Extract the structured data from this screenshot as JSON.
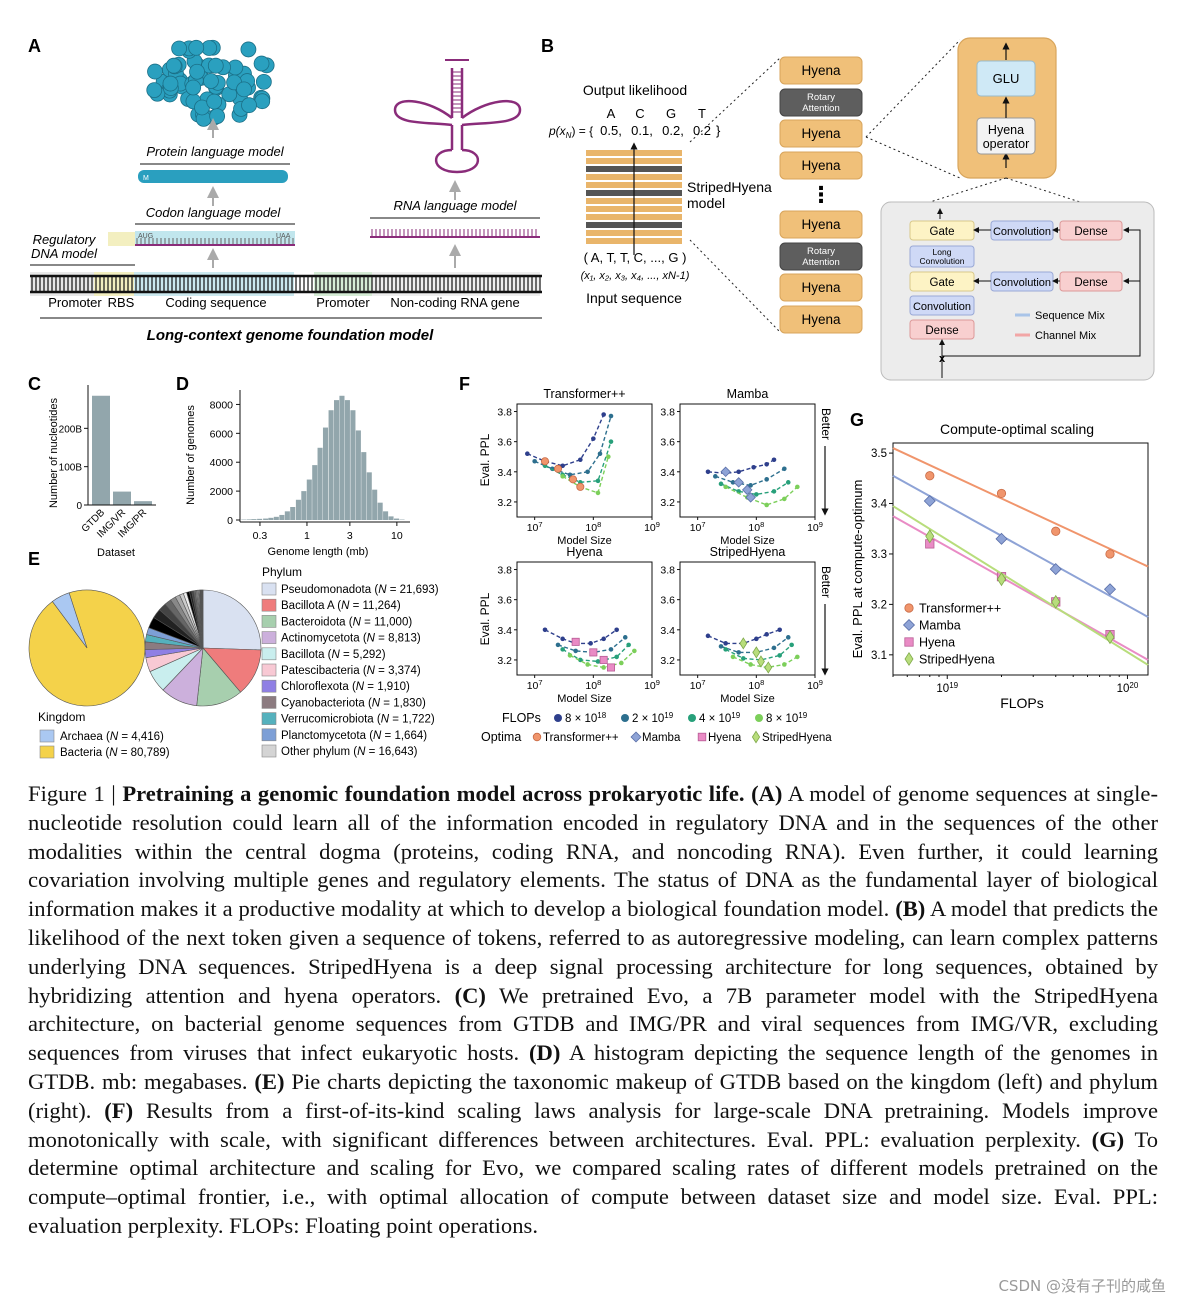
{
  "panel_letters": [
    "A",
    "B",
    "C",
    "D",
    "E",
    "F",
    "G"
  ],
  "panelA": {
    "protein_model": "Protein language model",
    "codon_model": "Codon language model",
    "rna_model": "RNA language model",
    "regulatory_model_l1": "Regulatory",
    "regulatory_model_l2": "DNA model",
    "start_codon": "AUG",
    "stop_codon": "UAA",
    "m_label": "M",
    "segments": [
      "Promoter",
      "RBS",
      "Coding sequence",
      "Promoter",
      "Non-coding RNA gene"
    ],
    "foundation_model": "Long-context genome foundation model"
  },
  "panelB": {
    "output_likelihood": "Output likelihood",
    "bases": [
      "A",
      "C",
      "G",
      "T"
    ],
    "prob_prefix": "p(x",
    "prob_sub": "N",
    "prob_suffix": ") = {",
    "probs": [
      "0.5,",
      "0.1,",
      "0.2,",
      "0.2"
    ],
    "prob_close": "}",
    "model_name_l1": "StripedHyena",
    "model_name_l2": "model",
    "input_tokens": "( A, T, T, C, ..., G )",
    "input_vars": "(x₁, x₂, x₃, x₄, ..., xN-1)",
    "input_sequence": "Input sequence",
    "stack": [
      "Hyena",
      "Rotary Attention",
      "Hyena",
      "Hyena",
      "Hyena",
      "Rotary Attention",
      "Hyena",
      "Hyena"
    ],
    "ellipsis": "⋮",
    "glu": "GLU",
    "hyena_op_l1": "Hyena",
    "hyena_op_l2": "operator",
    "gate": "Gate",
    "long_conv_l1": "Long",
    "long_conv_l2": "Convolution",
    "convolution": "Convolution",
    "dense": "Dense",
    "x_symbol": "x",
    "legend_seq": "Sequence Mix",
    "legend_chan": "Channel Mix"
  },
  "panelC": {
    "ylabel": "Number of nucleotides",
    "xlabel": "Dataset",
    "yticks": [
      "0",
      "100B",
      "200B"
    ],
    "categories": [
      "GTDB",
      "IMG/VR",
      "IMG/PR"
    ]
  },
  "panelD": {
    "ylabel": "Number of genomes",
    "xlabel": "Genome length (mb)",
    "yticks": [
      "0",
      "2000",
      "4000",
      "6000",
      "8000"
    ],
    "xticks": [
      "0.3",
      "1",
      "3",
      "10"
    ]
  },
  "panelE": {
    "kingdom_title": "Kingdom",
    "kingdoms": [
      {
        "pre": "Archaea (",
        "n": "N",
        "post": " = 4,416)",
        "color": "#aac8f2"
      },
      {
        "pre": "Bacteria (",
        "n": "N",
        "post": " = 80,789)",
        "color": "#f4d24a"
      }
    ],
    "phylum_title": "Phylum",
    "phyla": [
      {
        "pre": "Pseudomonadota (",
        "n": "N",
        "post": " = 21,693)",
        "color": "#d9e1f1"
      },
      {
        "pre": "Bacillota A (",
        "n": "N",
        "post": " = 11,264)",
        "color": "#ef7c7c"
      },
      {
        "pre": "Bacteroidota (",
        "n": "N",
        "post": " = 11,000)",
        "color": "#a7cfae"
      },
      {
        "pre": "Actinomycetota (",
        "n": "N",
        "post": " = 8,813)",
        "color": "#ccb0dc"
      },
      {
        "pre": "Bacillota (",
        "n": "N",
        "post": " = 5,292)",
        "color": "#c9eeee"
      },
      {
        "pre": "Patescibacteria (",
        "n": "N",
        "post": " = 3,374)",
        "color": "#f8c9d4"
      },
      {
        "pre": "Chloroflexota (",
        "n": "N",
        "post": " = 1,910)",
        "color": "#8f7fe4"
      },
      {
        "pre": "Cyanobacteriota (",
        "n": "N",
        "post": " = 1,830)",
        "color": "#8c7b80"
      },
      {
        "pre": "Verrucomicrobiota (",
        "n": "N",
        "post": " = 1,722)",
        "color": "#55b1bd"
      },
      {
        "pre": "Planctomycetota (",
        "n": "N",
        "post": " = 1,664)",
        "color": "#7d9fd6"
      },
      {
        "pre": "Other phylum (",
        "n": "N",
        "post": " = 16,643)",
        "color": "#d4d4d4"
      }
    ]
  },
  "panelF": {
    "titles": [
      "Transformer++",
      "Mamba",
      "Hyena",
      "StripedHyena"
    ],
    "ylabel": "Eval. PPL",
    "xlabel": "Model Size",
    "better": "Better",
    "yticks_top": [
      "3.2",
      "3.4",
      "3.6",
      "3.8"
    ],
    "yticks_bottom": [
      "3.2",
      "3.4",
      "3.6",
      "3.8"
    ],
    "xtick_base": "10",
    "xtick_exps": [
      "7",
      "8",
      "9"
    ],
    "flops_label": "FLOPs",
    "flops": [
      {
        "label": "8 × 10",
        "exp": "18",
        "color": "#2e3f8c"
      },
      {
        "label": "2 × 10",
        "exp": "19",
        "color": "#2d6f8e"
      },
      {
        "label": "4 × 10",
        "exp": "19",
        "color": "#27a07a"
      },
      {
        "label": "8 × 10",
        "exp": "19",
        "color": "#7ccf5a"
      }
    ],
    "optima_label": "Optima",
    "optima": [
      "Transformer++",
      "Mamba",
      "Hyena",
      "StripedHyena"
    ]
  },
  "panelG": {
    "title": "Compute-optimal scaling",
    "ylabel": "Eval. PPL at compute-optimum",
    "xlabel": "FLOPs",
    "yticks": [
      "3.1",
      "3.2",
      "3.3",
      "3.4",
      "3.5"
    ],
    "xtick_base": "10",
    "xtick_exps": [
      "19",
      "20"
    ],
    "series": [
      "Transformer++",
      "Mamba",
      "Hyena",
      "StripedHyena"
    ],
    "colors": {
      "Transformer++": "#f0956c",
      "Mamba": "#8ea3d6",
      "Hyena": "#e98bc5",
      "StripedHyena": "#b8dd7c"
    }
  },
  "chart_data": [
    {
      "type": "bar",
      "panel": "C",
      "categories": [
        "GTDB",
        "IMG/VR",
        "IMG/PR"
      ],
      "values": [
        285,
        35,
        10
      ],
      "unit": "B",
      "ylabel": "Number of nucleotides",
      "xlabel": "Dataset",
      "ylim": [
        0,
        300
      ]
    },
    {
      "type": "bar",
      "panel": "D",
      "xlabel": "Genome length (mb)",
      "ylabel": "Number of genomes",
      "xscale": "log",
      "x": [
        0.2,
        0.23,
        0.26,
        0.3,
        0.35,
        0.4,
        0.46,
        0.53,
        0.61,
        0.7,
        0.81,
        0.93,
        1.07,
        1.23,
        1.41,
        1.62,
        1.87,
        2.15,
        2.47,
        2.84,
        3.27,
        3.76,
        4.32,
        4.97,
        5.71,
        6.57,
        7.55,
        8.68,
        10.0,
        11.5
      ],
      "values": [
        30,
        40,
        60,
        80,
        100,
        150,
        220,
        350,
        600,
        900,
        1400,
        2000,
        2800,
        3800,
        5000,
        6400,
        7600,
        8300,
        8600,
        8300,
        7600,
        6200,
        4700,
        3300,
        2100,
        1200,
        600,
        250,
        100,
        30
      ],
      "ylim": [
        0,
        9000
      ]
    },
    {
      "type": "pie",
      "panel": "E-kingdom",
      "labels": [
        "Archaea",
        "Bacteria"
      ],
      "values": [
        4416,
        80789
      ]
    },
    {
      "type": "pie",
      "panel": "E-phylum",
      "labels": [
        "Pseudomonadota",
        "Bacillota A",
        "Bacteroidota",
        "Actinomycetota",
        "Bacillota",
        "Patescibacteria",
        "Chloroflexota",
        "Cyanobacteriota",
        "Verrucomicrobiota",
        "Planctomycetota",
        "Other phylum"
      ],
      "values": [
        21693,
        11264,
        11000,
        8813,
        5292,
        3374,
        1910,
        1830,
        1722,
        1664,
        16643
      ]
    },
    {
      "type": "scatter",
      "panel": "F",
      "xscale": "log",
      "xlim": [
        5000000.0,
        1000000000.0
      ],
      "ylim": [
        3.1,
        3.85
      ],
      "xlabel": "Model Size",
      "ylabel": "Eval. PPL",
      "subplots": [
        {
          "title": "Transformer++",
          "series": [
            {
              "flops": "8e18",
              "x": [
                7500000.0,
                15000000.0,
                30000000.0,
                60000000.0,
                100000000.0,
                150000000.0
              ],
              "y": [
                3.52,
                3.47,
                3.44,
                3.48,
                3.62,
                3.78
              ]
            },
            {
              "flops": "2e19",
              "x": [
                10000000.0,
                20000000.0,
                40000000.0,
                80000000.0,
                130000000.0,
                200000000.0
              ],
              "y": [
                3.47,
                3.42,
                3.38,
                3.4,
                3.52,
                3.77
              ]
            },
            {
              "flops": "4e19",
              "x": [
                15000000.0,
                30000000.0,
                60000000.0,
                120000000.0,
                200000000.0
              ],
              "y": [
                3.44,
                3.38,
                3.33,
                3.34,
                3.6
              ]
            },
            {
              "flops": "8e19",
              "x": [
                30000000.0,
                60000000.0,
                120000000.0,
                180000000.0
              ],
              "y": [
                3.37,
                3.3,
                3.26,
                3.5
              ]
            }
          ],
          "optima": {
            "x": [
              15000000.0,
              25000000.0,
              45000000.0,
              60000000.0
            ],
            "y": [
              3.47,
              3.42,
              3.35,
              3.3
            ]
          }
        },
        {
          "title": "Mamba",
          "series": [
            {
              "flops": "8e18",
              "x": [
                15000000.0,
                30000000.0,
                50000000.0,
                90000000.0,
                150000000.0,
                200000000.0
              ],
              "y": [
                3.4,
                3.39,
                3.4,
                3.43,
                3.45,
                3.48
              ]
            },
            {
              "flops": "2e19",
              "x": [
                20000000.0,
                40000000.0,
                80000000.0,
                150000000.0,
                300000000.0
              ],
              "y": [
                3.37,
                3.33,
                3.31,
                3.35,
                3.42
              ]
            },
            {
              "flops": "4e19",
              "x": [
                25000000.0,
                50000000.0,
                100000000.0,
                200000000.0,
                350000000.0
              ],
              "y": [
                3.32,
                3.27,
                3.25,
                3.27,
                3.33
              ]
            },
            {
              "flops": "8e19",
              "x": [
                30000000.0,
                70000000.0,
                150000000.0,
                300000000.0,
                500000000.0
              ],
              "y": [
                3.3,
                3.23,
                3.18,
                3.22,
                3.3
              ]
            }
          ],
          "optima": {
            "x": [
              30000000.0,
              50000000.0,
              70000000.0,
              80000000.0
            ],
            "y": [
              3.4,
              3.33,
              3.28,
              3.23
            ]
          }
        },
        {
          "title": "Hyena",
          "series": [
            {
              "flops": "8e18",
              "x": [
                15000000.0,
                30000000.0,
                50000000.0,
                90000000.0,
                150000000.0,
                250000000.0
              ],
              "y": [
                3.4,
                3.34,
                3.31,
                3.31,
                3.34,
                3.4
              ]
            },
            {
              "flops": "2e19",
              "x": [
                25000000.0,
                50000000.0,
                100000000.0,
                200000000.0,
                350000000.0
              ],
              "y": [
                3.3,
                3.26,
                3.25,
                3.27,
                3.35
              ]
            },
            {
              "flops": "4e19",
              "x": [
                30000000.0,
                60000000.0,
                120000000.0,
                250000000.0,
                400000000.0
              ],
              "y": [
                3.27,
                3.2,
                3.19,
                3.22,
                3.3
              ]
            },
            {
              "flops": "8e19",
              "x": [
                40000000.0,
                80000000.0,
                150000000.0,
                300000000.0,
                500000000.0
              ],
              "y": [
                3.23,
                3.17,
                3.15,
                3.18,
                3.26
              ]
            }
          ],
          "optima": {
            "x": [
              50000000.0,
              100000000.0,
              150000000.0,
              200000000.0
            ],
            "y": [
              3.32,
              3.25,
              3.2,
              3.15
            ]
          }
        },
        {
          "title": "StripedHyena",
          "series": [
            {
              "flops": "8e18",
              "x": [
                15000000.0,
                30000000.0,
                60000000.0,
                100000000.0,
                150000000.0,
                250000000.0
              ],
              "y": [
                3.36,
                3.31,
                3.31,
                3.34,
                3.37,
                3.4
              ]
            },
            {
              "flops": "2e19",
              "x": [
                25000000.0,
                50000000.0,
                100000000.0,
                200000000.0,
                350000000.0
              ],
              "y": [
                3.29,
                3.25,
                3.25,
                3.28,
                3.35
              ]
            },
            {
              "flops": "4e19",
              "x": [
                30000000.0,
                60000000.0,
                120000000.0,
                250000000.0,
                400000000.0
              ],
              "y": [
                3.27,
                3.21,
                3.2,
                3.23,
                3.3
              ]
            },
            {
              "flops": "8e19",
              "x": [
                40000000.0,
                80000000.0,
                150000000.0,
                300000000.0,
                500000000.0
              ],
              "y": [
                3.22,
                3.17,
                3.15,
                3.17,
                3.22
              ]
            }
          ],
          "optima": {
            "x": [
              60000000.0,
              100000000.0,
              120000000.0,
              160000000.0
            ],
            "y": [
              3.31,
              3.25,
              3.19,
              3.15
            ]
          }
        }
      ]
    },
    {
      "type": "scatter",
      "panel": "G",
      "title": "Compute-optimal scaling",
      "xlabel": "FLOPs",
      "ylabel": "Eval. PPL at compute-optimum",
      "xscale": "log",
      "xlim": [
        5e+18,
        1.3e+20
      ],
      "ylim": [
        3.06,
        3.52
      ],
      "series": [
        {
          "name": "Transformer++",
          "x": [
            8e+18,
            2e+19,
            4e+19,
            8e+19
          ],
          "y": [
            3.455,
            3.42,
            3.345,
            3.3
          ],
          "fit": [
            [
              5e+18,
              3.51
            ],
            [
              1.3e+20,
              3.275
            ]
          ]
        },
        {
          "name": "Mamba",
          "x": [
            8e+18,
            2e+19,
            4e+19,
            8e+19
          ],
          "y": [
            3.405,
            3.33,
            3.27,
            3.23
          ],
          "fit": [
            [
              5e+18,
              3.455
            ],
            [
              1.3e+20,
              3.175
            ]
          ]
        },
        {
          "name": "Hyena",
          "x": [
            8e+18,
            2e+19,
            4e+19,
            8e+19
          ],
          "y": [
            3.32,
            3.255,
            3.205,
            3.14
          ],
          "fit": [
            [
              5e+18,
              3.375
            ],
            [
              1.3e+20,
              3.09
            ]
          ]
        },
        {
          "name": "StripedHyena",
          "x": [
            8e+18,
            2e+19,
            4e+19,
            8e+19
          ],
          "y": [
            3.335,
            3.25,
            3.205,
            3.135
          ],
          "fit": [
            [
              5e+18,
              3.395
            ],
            [
              1.3e+20,
              3.08
            ]
          ]
        }
      ]
    }
  ],
  "caption": {
    "fig_label": "Figure 1 | ",
    "title": "Pretraining a genomic foundation model across prokaryotic life.",
    "parts": [
      {
        "key": "(A)",
        "text": " A model of genome sequences at single-nucleotide resolution could learn all of the information encoded in regulatory DNA and in the sequences of the other modalities within the central dogma (proteins, coding RNA, and noncoding RNA). Even further, it could learning covariation involving multiple genes and regulatory elements. The status of DNA as the fundamental layer of biological information makes it a productive modality at which to develop a biological foundation model. "
      },
      {
        "key": "(B)",
        "text": " A model that predicts the likelihood of the next token given a sequence of tokens, referred to as autoregressive modeling, can learn complex patterns underlying DNA sequences. StripedHyena is a deep signal processing architecture for long sequences, obtained by hybridizing attention and hyena operators. "
      },
      {
        "key": "(C)",
        "text": " We pretrained Evo, a 7B parameter model with the StripedHyena architecture, on bacterial genome sequences from GTDB and IMG/PR and viral sequences from IMG/VR, excluding sequences from viruses that infect eukaryotic hosts. "
      },
      {
        "key": "(D)",
        "text": " A histogram depicting the sequence length of the genomes in GTDB. mb: megabases. "
      },
      {
        "key": "(E)",
        "text": " Pie charts depicting the taxonomic makeup of GTDB based on the kingdom (left) and phylum (right). "
      },
      {
        "key": "(F)",
        "text": " Results from a first-of-its-kind scaling laws analysis for large-scale DNA pretraining. Models improve monotonically with scale, with significant differences between architectures. Eval. PPL: evaluation perplexity. "
      },
      {
        "key": "(G)",
        "text": " To determine optimal architecture and scaling for Evo, we compared scaling rates of different models pretrained on the compute–optimal frontier, i.e., with optimal allocation of compute between dataset size and model size. Eval. PPL: evaluation perplexity. FLOPs: Floating point operations."
      }
    ]
  },
  "watermark": "CSDN @没有子刊的咸鱼"
}
